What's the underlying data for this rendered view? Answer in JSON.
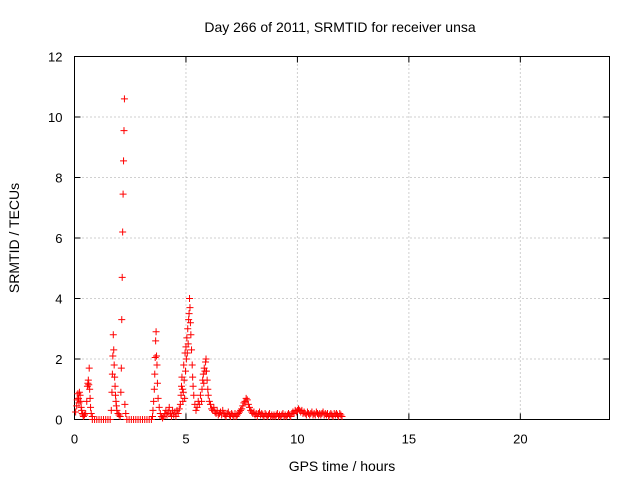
{
  "chart_data": {
    "type": "scatter",
    "title": "Day 266 of 2011, SRMTID for receiver unsa",
    "xlabel": "GPS time / hours",
    "ylabel": "SRMTID / TECUs",
    "xlim": [
      0,
      24
    ],
    "ylim": [
      0,
      12
    ],
    "xticks": [
      0,
      5,
      10,
      15,
      20
    ],
    "xtick_labels": [
      "0",
      "5",
      "10",
      "15",
      "20"
    ],
    "yticks": [
      0,
      2,
      4,
      6,
      8,
      10,
      12
    ],
    "ytick_labels": [
      "0",
      "2",
      "4",
      "6",
      "8",
      "10",
      "12"
    ],
    "grid": true,
    "marker": "plus",
    "series": [
      {
        "color": "#ff0000",
        "points": [
          [
            0.05,
            0.25
          ],
          [
            0.1,
            0.45
          ],
          [
            0.12,
            0.65
          ],
          [
            0.15,
            0.85
          ],
          [
            0.18,
            0.7
          ],
          [
            0.2,
            0.55
          ],
          [
            0.22,
            0.9
          ],
          [
            0.25,
            0.8
          ],
          [
            0.28,
            0.6
          ],
          [
            0.3,
            0.4
          ],
          [
            0.32,
            0.3
          ],
          [
            0.35,
            0.2
          ],
          [
            0.38,
            0.15
          ],
          [
            0.4,
            0.1
          ],
          [
            0.45,
            0.15
          ],
          [
            0.5,
            0.2
          ],
          [
            0.55,
            0.6
          ],
          [
            0.58,
            1.1
          ],
          [
            0.6,
            1.2
          ],
          [
            0.62,
            1.3
          ],
          [
            0.64,
            1.15
          ],
          [
            0.66,
            1.7
          ],
          [
            0.68,
            1.0
          ],
          [
            0.7,
            0.7
          ],
          [
            0.72,
            0.4
          ],
          [
            0.75,
            0.2
          ],
          [
            0.8,
            0.1
          ],
          [
            0.8,
            0.0
          ],
          [
            0.9,
            0.0
          ],
          [
            1.0,
            0.0
          ],
          [
            1.1,
            0.0
          ],
          [
            1.2,
            0.0
          ],
          [
            1.3,
            0.0
          ],
          [
            1.4,
            0.0
          ],
          [
            1.5,
            0.0
          ],
          [
            1.6,
            0.0
          ],
          [
            1.65,
            0.3
          ],
          [
            1.68,
            0.9
          ],
          [
            1.7,
            1.5
          ],
          [
            1.72,
            2.1
          ],
          [
            1.74,
            2.8
          ],
          [
            1.76,
            2.3
          ],
          [
            1.78,
            1.8
          ],
          [
            1.8,
            1.4
          ],
          [
            1.82,
            1.1
          ],
          [
            1.84,
            0.8
          ],
          [
            1.86,
            0.6
          ],
          [
            1.88,
            0.45
          ],
          [
            1.9,
            0.3
          ],
          [
            1.95,
            0.2
          ],
          [
            2.0,
            0.15
          ],
          [
            2.05,
            0.1
          ],
          [
            2.08,
            0.9
          ],
          [
            2.1,
            1.7
          ],
          [
            2.12,
            3.3
          ],
          [
            2.14,
            4.7
          ],
          [
            2.16,
            6.2
          ],
          [
            2.18,
            7.45
          ],
          [
            2.2,
            8.55
          ],
          [
            2.22,
            9.55
          ],
          [
            2.24,
            10.6
          ],
          [
            2.26,
            0.5
          ],
          [
            2.3,
            0.2
          ],
          [
            2.35,
            0.0
          ],
          [
            2.45,
            0.0
          ],
          [
            2.55,
            0.0
          ],
          [
            2.65,
            0.0
          ],
          [
            2.75,
            0.0
          ],
          [
            2.85,
            0.0
          ],
          [
            2.95,
            0.0
          ],
          [
            3.05,
            0.0
          ],
          [
            3.15,
            0.0
          ],
          [
            3.25,
            0.0
          ],
          [
            3.35,
            0.0
          ],
          [
            3.45,
            0.0
          ],
          [
            3.5,
            0.1
          ],
          [
            3.52,
            0.3
          ],
          [
            3.55,
            0.6
          ],
          [
            3.58,
            1.0
          ],
          [
            3.6,
            1.5
          ],
          [
            3.62,
            2.05
          ],
          [
            3.64,
            2.6
          ],
          [
            3.66,
            2.9
          ],
          [
            3.68,
            2.1
          ],
          [
            3.7,
            1.8
          ],
          [
            3.72,
            1.2
          ],
          [
            3.75,
            0.7
          ],
          [
            3.8,
            0.4
          ],
          [
            3.85,
            0.2
          ],
          [
            3.9,
            0.1
          ],
          [
            3.95,
            0.05
          ],
          [
            4.0,
            0.1
          ],
          [
            4.05,
            0.2
          ],
          [
            4.1,
            0.3
          ],
          [
            4.15,
            0.15
          ],
          [
            4.2,
            0.25
          ],
          [
            4.25,
            0.4
          ],
          [
            4.3,
            0.2
          ],
          [
            4.35,
            0.1
          ],
          [
            4.4,
            0.3
          ],
          [
            4.45,
            0.15
          ],
          [
            4.5,
            0.25
          ],
          [
            4.55,
            0.1
          ],
          [
            4.6,
            0.3
          ],
          [
            4.65,
            0.2
          ],
          [
            4.7,
            0.35
          ],
          [
            4.75,
            0.5
          ],
          [
            4.78,
            0.8
          ],
          [
            4.8,
            1.1
          ],
          [
            4.82,
            1.4
          ],
          [
            4.84,
            1.0
          ],
          [
            4.86,
            0.6
          ],
          [
            4.88,
            0.9
          ],
          [
            4.9,
            1.8
          ],
          [
            4.92,
            1.3
          ],
          [
            4.94,
            0.7
          ],
          [
            4.96,
            2.2
          ],
          [
            4.98,
            1.6
          ],
          [
            5.0,
            2.4
          ],
          [
            5.02,
            2.0
          ],
          [
            5.04,
            2.7
          ],
          [
            5.06,
            2.2
          ],
          [
            5.08,
            3.0
          ],
          [
            5.1,
            2.5
          ],
          [
            5.12,
            3.3
          ],
          [
            5.14,
            3.5
          ],
          [
            5.16,
            4.0
          ],
          [
            5.18,
            3.7
          ],
          [
            5.2,
            3.2
          ],
          [
            5.22,
            2.8
          ],
          [
            5.25,
            2.3
          ],
          [
            5.28,
            1.8
          ],
          [
            5.3,
            1.4
          ],
          [
            5.32,
            1.1
          ],
          [
            5.35,
            0.8
          ],
          [
            5.4,
            0.5
          ],
          [
            5.45,
            0.3
          ],
          [
            5.5,
            0.4
          ],
          [
            5.55,
            0.6
          ],
          [
            5.6,
            0.5
          ],
          [
            5.65,
            0.8
          ],
          [
            5.7,
            0.6
          ],
          [
            5.72,
            1.0
          ],
          [
            5.75,
            1.3
          ],
          [
            5.78,
            1.5
          ],
          [
            5.8,
            1.2
          ],
          [
            5.82,
            1.7
          ],
          [
            5.85,
            1.6
          ],
          [
            5.88,
            1.9
          ],
          [
            5.9,
            2.0
          ],
          [
            5.92,
            1.6
          ],
          [
            5.95,
            1.3
          ],
          [
            5.98,
            1.0
          ],
          [
            6.0,
            0.8
          ],
          [
            6.05,
            0.6
          ],
          [
            6.1,
            0.5
          ],
          [
            6.15,
            0.35
          ],
          [
            6.2,
            0.3
          ],
          [
            6.25,
            0.4
          ],
          [
            6.3,
            0.25
          ],
          [
            6.35,
            0.2
          ],
          [
            6.4,
            0.3
          ],
          [
            6.45,
            0.15
          ],
          [
            6.5,
            0.2
          ],
          [
            6.55,
            0.25
          ],
          [
            6.6,
            0.15
          ],
          [
            6.65,
            0.3
          ],
          [
            6.7,
            0.2
          ],
          [
            6.75,
            0.15
          ],
          [
            6.8,
            0.1
          ],
          [
            6.85,
            0.2
          ],
          [
            6.9,
            0.25
          ],
          [
            6.95,
            0.15
          ],
          [
            7.0,
            0.1
          ],
          [
            7.05,
            0.2
          ],
          [
            7.1,
            0.15
          ],
          [
            7.15,
            0.1
          ],
          [
            7.2,
            0.2
          ],
          [
            7.25,
            0.1
          ],
          [
            7.3,
            0.15
          ],
          [
            7.35,
            0.2
          ],
          [
            7.4,
            0.25
          ],
          [
            7.45,
            0.3
          ],
          [
            7.5,
            0.35
          ],
          [
            7.55,
            0.45
          ],
          [
            7.6,
            0.55
          ],
          [
            7.65,
            0.6
          ],
          [
            7.7,
            0.7
          ],
          [
            7.75,
            0.65
          ],
          [
            7.8,
            0.5
          ],
          [
            7.85,
            0.4
          ],
          [
            7.9,
            0.3
          ],
          [
            7.95,
            0.25
          ],
          [
            8.0,
            0.2
          ],
          [
            8.05,
            0.25
          ],
          [
            8.1,
            0.15
          ],
          [
            8.15,
            0.2
          ],
          [
            8.2,
            0.1
          ],
          [
            8.25,
            0.2
          ],
          [
            8.3,
            0.25
          ],
          [
            8.35,
            0.15
          ],
          [
            8.4,
            0.2
          ],
          [
            8.45,
            0.15
          ],
          [
            8.5,
            0.1
          ],
          [
            8.55,
            0.2
          ],
          [
            8.6,
            0.15
          ],
          [
            8.65,
            0.1
          ],
          [
            8.7,
            0.15
          ],
          [
            8.75,
            0.2
          ],
          [
            8.8,
            0.1
          ],
          [
            8.85,
            0.15
          ],
          [
            8.9,
            0.1
          ],
          [
            8.95,
            0.15
          ],
          [
            9.0,
            0.1
          ],
          [
            9.05,
            0.15
          ],
          [
            9.1,
            0.2
          ],
          [
            9.15,
            0.1
          ],
          [
            9.2,
            0.15
          ],
          [
            9.25,
            0.1
          ],
          [
            9.3,
            0.15
          ],
          [
            9.35,
            0.2
          ],
          [
            9.4,
            0.1
          ],
          [
            9.45,
            0.15
          ],
          [
            9.5,
            0.1
          ],
          [
            9.55,
            0.15
          ],
          [
            9.6,
            0.2
          ],
          [
            9.65,
            0.15
          ],
          [
            9.7,
            0.1
          ],
          [
            9.75,
            0.2
          ],
          [
            9.8,
            0.25
          ],
          [
            9.85,
            0.2
          ],
          [
            9.9,
            0.3
          ],
          [
            9.95,
            0.25
          ],
          [
            10.0,
            0.3
          ],
          [
            10.05,
            0.35
          ],
          [
            10.1,
            0.3
          ],
          [
            10.15,
            0.25
          ],
          [
            10.2,
            0.3
          ],
          [
            10.25,
            0.2
          ],
          [
            10.3,
            0.25
          ],
          [
            10.35,
            0.2
          ],
          [
            10.4,
            0.15
          ],
          [
            10.45,
            0.25
          ],
          [
            10.5,
            0.2
          ],
          [
            10.55,
            0.15
          ],
          [
            10.6,
            0.2
          ],
          [
            10.65,
            0.25
          ],
          [
            10.7,
            0.15
          ],
          [
            10.75,
            0.2
          ],
          [
            10.8,
            0.15
          ],
          [
            10.85,
            0.25
          ],
          [
            10.9,
            0.2
          ],
          [
            10.95,
            0.15
          ],
          [
            11.0,
            0.2
          ],
          [
            11.05,
            0.15
          ],
          [
            11.1,
            0.2
          ],
          [
            11.15,
            0.25
          ],
          [
            11.2,
            0.15
          ],
          [
            11.25,
            0.2
          ],
          [
            11.3,
            0.15
          ],
          [
            11.35,
            0.2
          ],
          [
            11.4,
            0.1
          ],
          [
            11.45,
            0.15
          ],
          [
            11.5,
            0.2
          ],
          [
            11.55,
            0.15
          ],
          [
            11.6,
            0.1
          ],
          [
            11.65,
            0.2
          ],
          [
            11.7,
            0.15
          ],
          [
            11.75,
            0.2
          ],
          [
            11.8,
            0.15
          ],
          [
            11.85,
            0.1
          ],
          [
            11.9,
            0.2
          ],
          [
            11.95,
            0.15
          ],
          [
            12.0,
            0.1
          ]
        ]
      }
    ]
  }
}
